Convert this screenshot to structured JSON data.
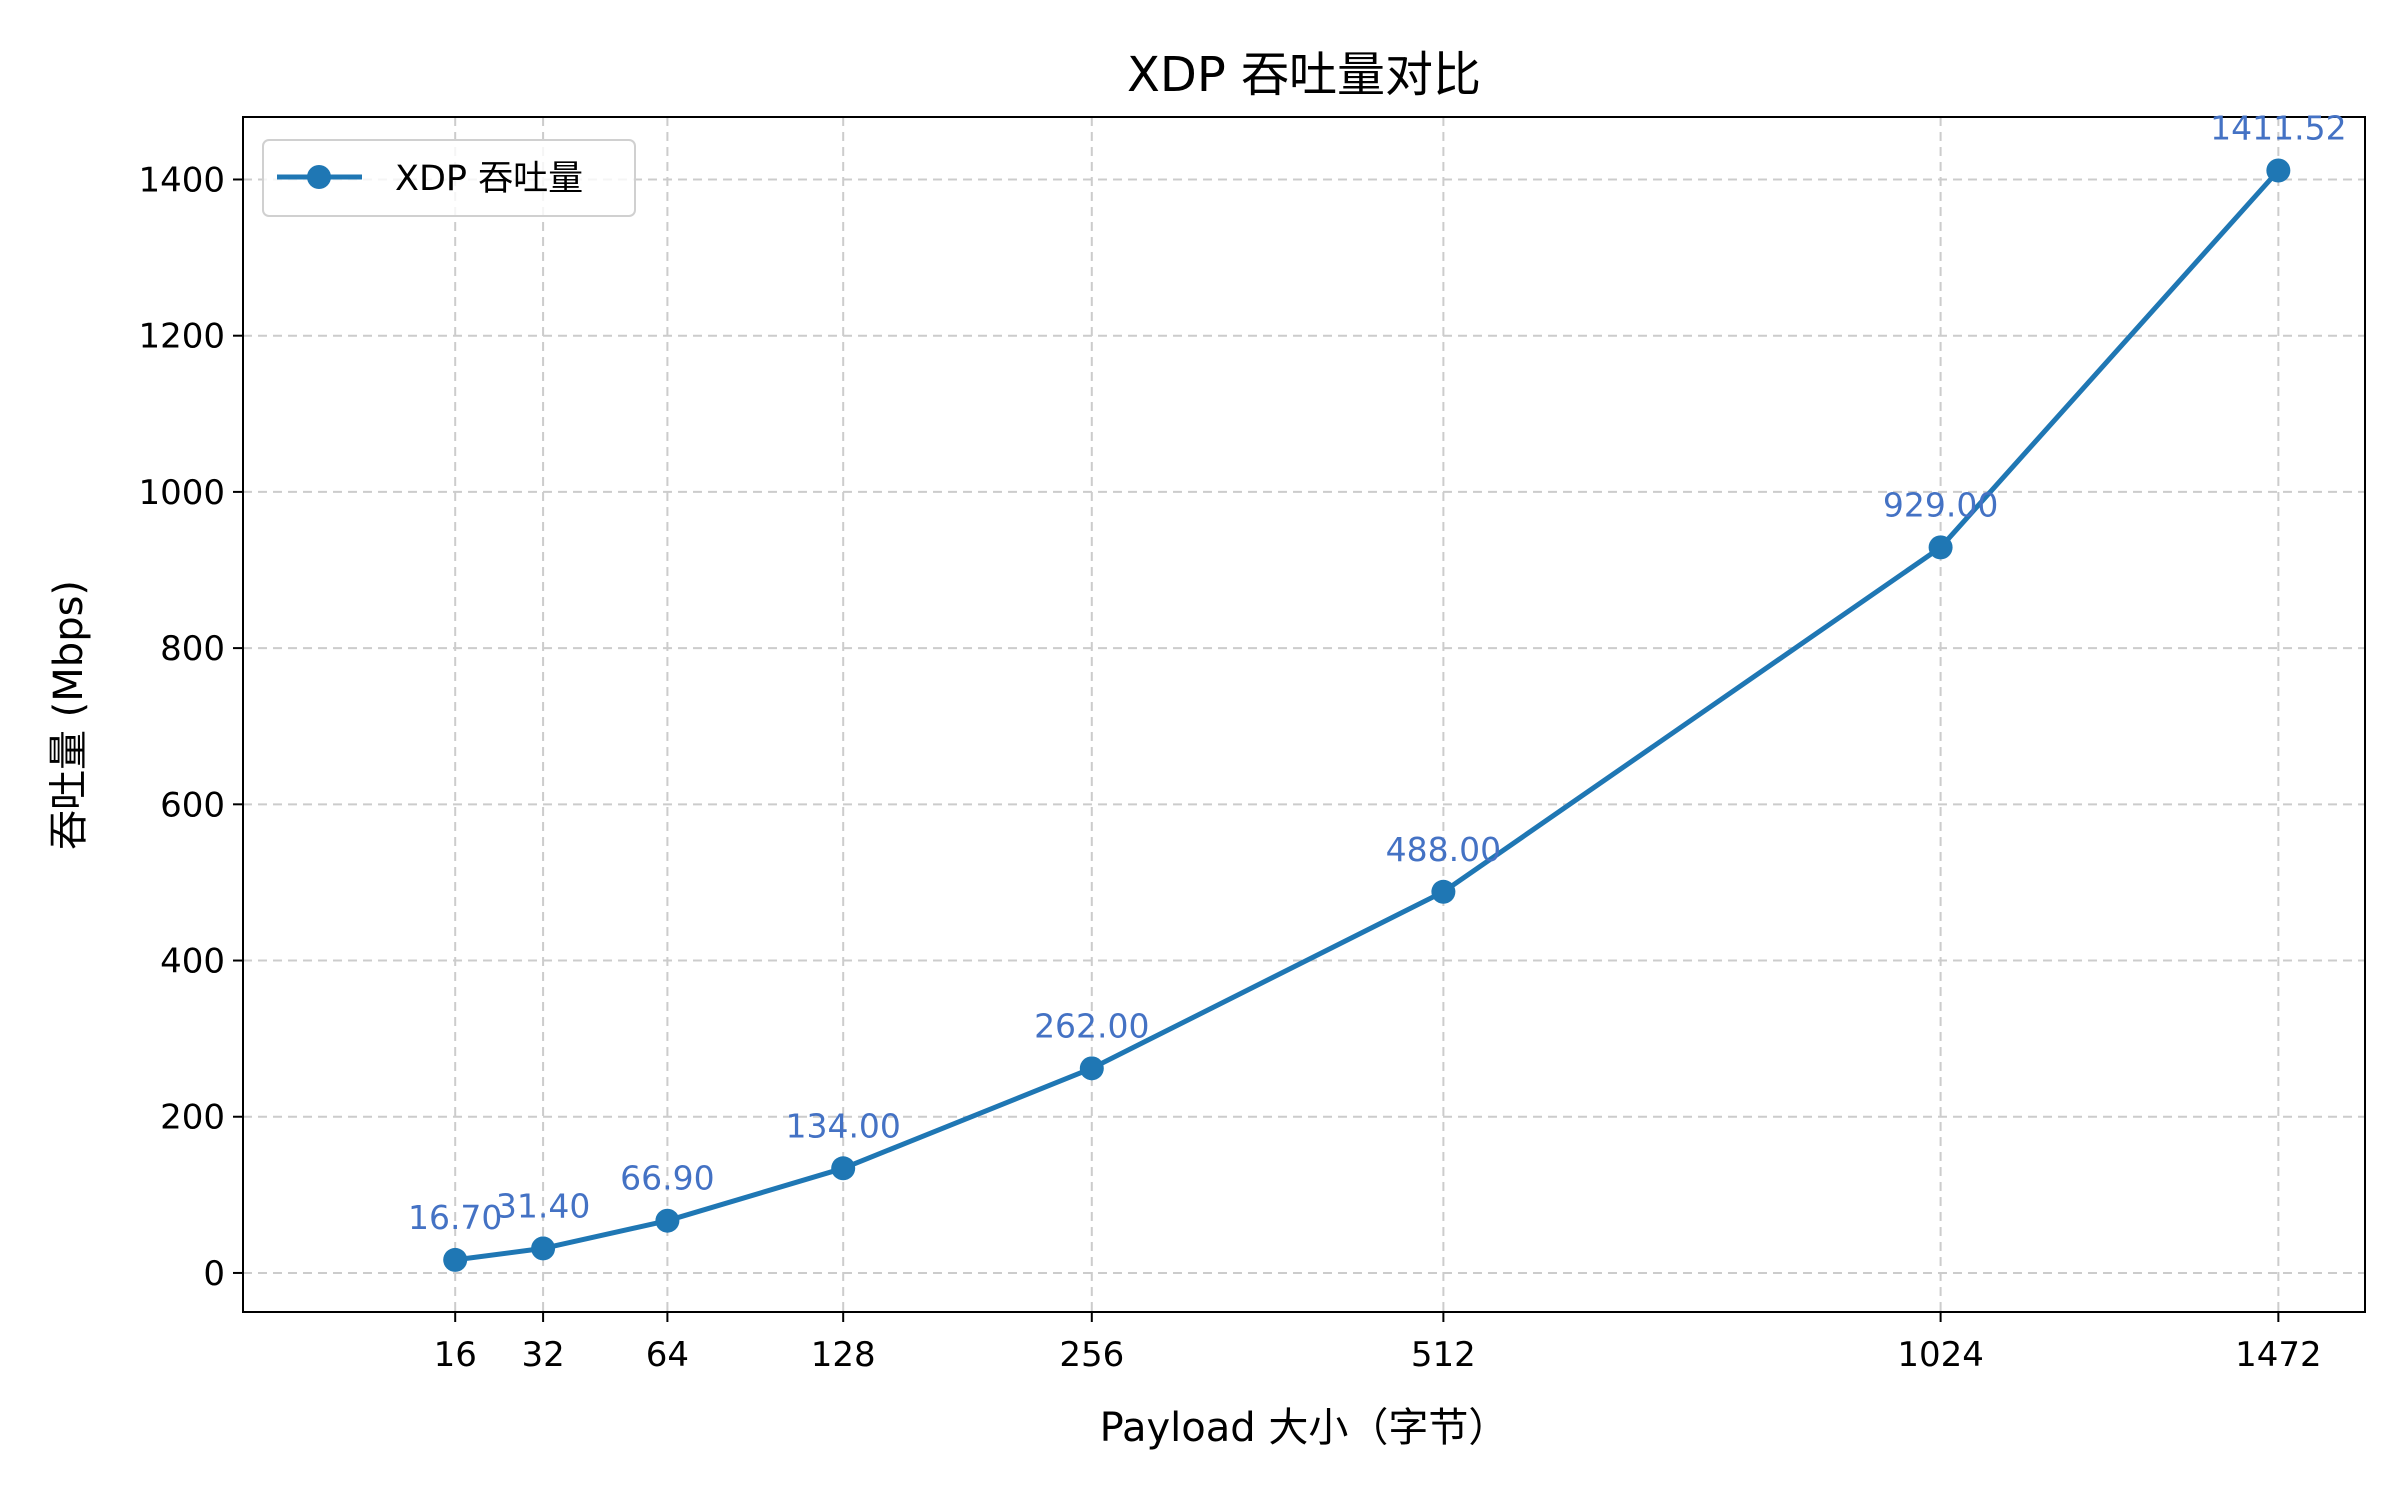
{
  "chart_data": {
    "type": "line",
    "title": "XDP 吞吐量对比",
    "xlabel": "Payload 大小（字节）",
    "ylabel": "吞吐量 (Mbps)",
    "x": [
      16,
      32,
      64,
      128,
      256,
      512,
      1024,
      1472
    ],
    "x_tick_labels": [
      "16",
      "32",
      "64",
      "128",
      "256",
      "512",
      "1024",
      "1472"
    ],
    "x_scale": "sqrt",
    "xlim": [
      0,
      1600
    ],
    "ylim": [
      -50,
      1480
    ],
    "y_ticks": [
      0,
      200,
      400,
      600,
      800,
      1000,
      1200,
      1400
    ],
    "y_tick_labels": [
      "0",
      "200",
      "400",
      "600",
      "800",
      "1000",
      "1200",
      "1400"
    ],
    "grid": true,
    "legend_position": "top-left",
    "series": [
      {
        "name": "XDP 吞吐量",
        "color": "#1f77b4",
        "marker": "circle",
        "values": [
          16.7,
          31.4,
          66.9,
          134.0,
          262.0,
          488.0,
          929.0,
          1411.52
        ],
        "data_labels": [
          "16.70",
          "31.40",
          "66.90",
          "134.00",
          "262.00",
          "488.00",
          "929.00",
          "1411.52"
        ]
      }
    ],
    "data_label_color": "#4472c4"
  }
}
